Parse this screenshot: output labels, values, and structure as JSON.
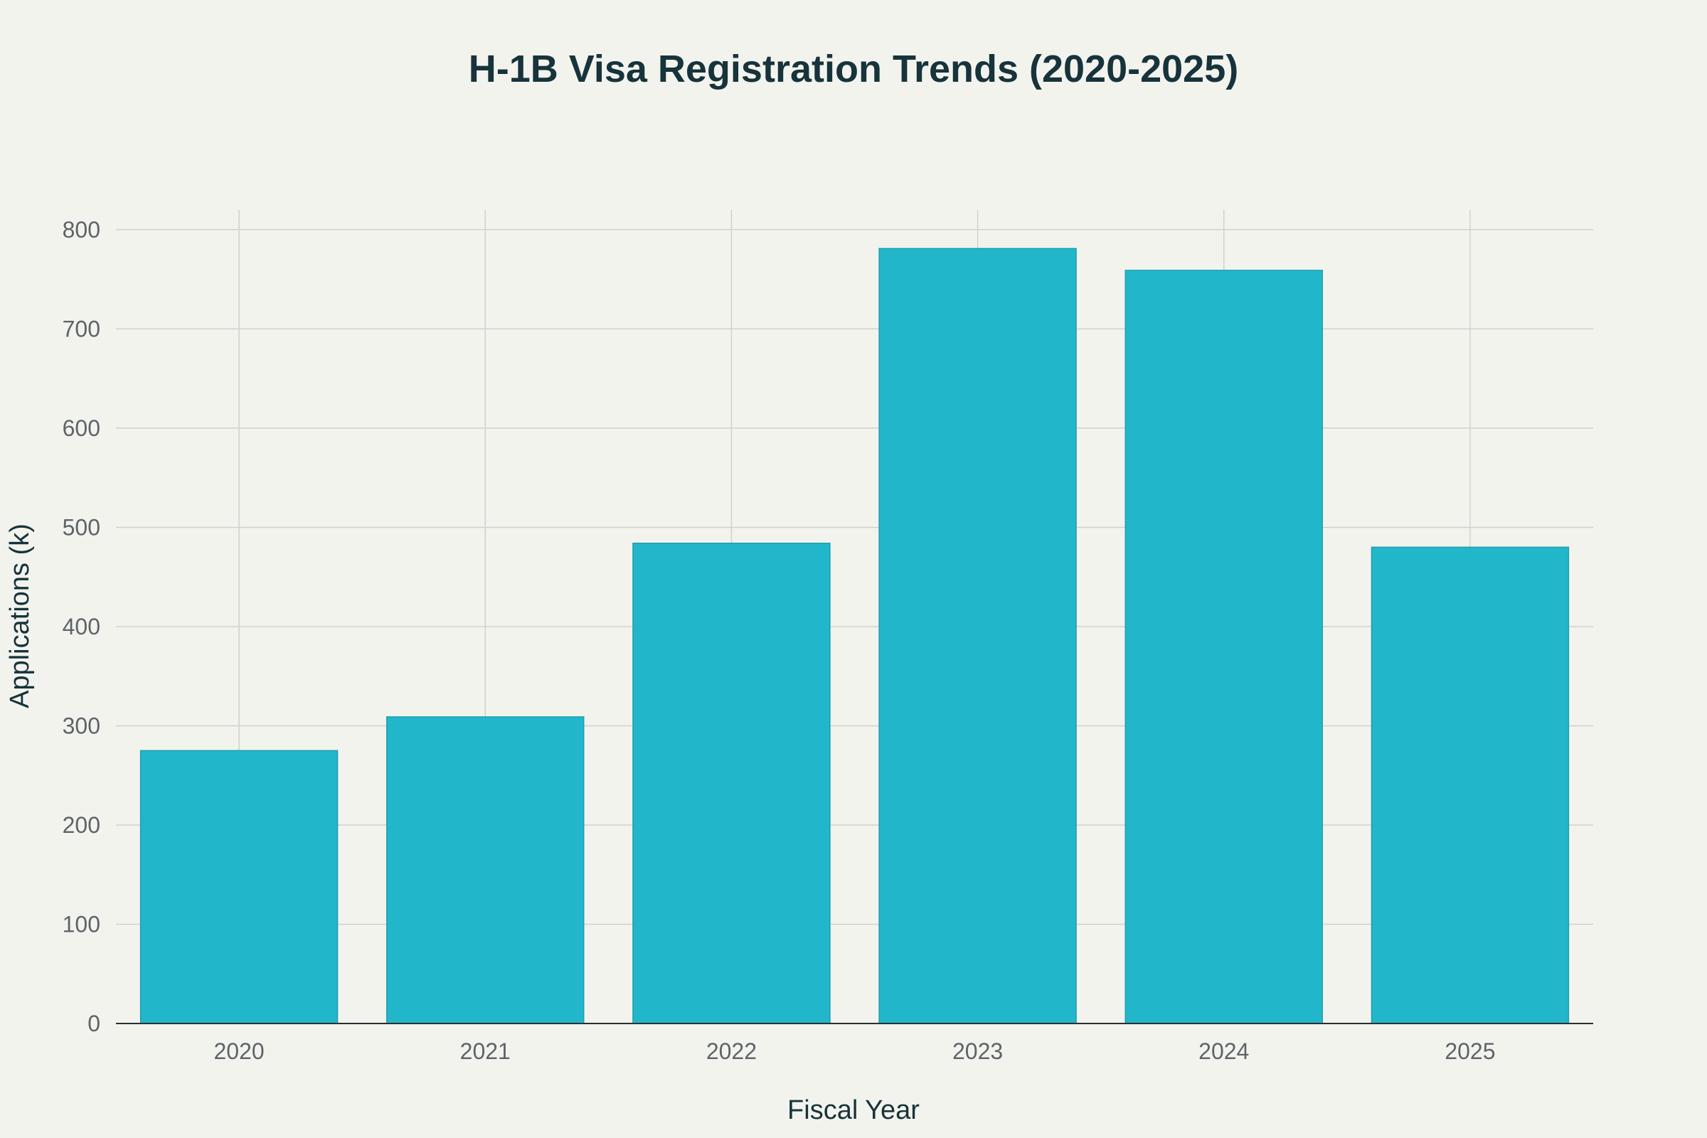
{
  "chart_data": {
    "type": "bar",
    "title": "H-1B Visa Registration Trends (2020-2025)",
    "xlabel": "Fiscal Year",
    "ylabel": "Applications (k)",
    "categories": [
      "2020",
      "2021",
      "2022",
      "2023",
      "2024",
      "2025"
    ],
    "values": [
      275,
      309,
      484,
      781,
      759,
      480
    ],
    "ylim": [
      0,
      820
    ],
    "yticks": [
      0,
      100,
      200,
      300,
      400,
      500,
      600,
      700,
      800
    ],
    "grid": true,
    "bar_color": "#22b6cb",
    "bar_edge_color": "#1b9fb1"
  }
}
